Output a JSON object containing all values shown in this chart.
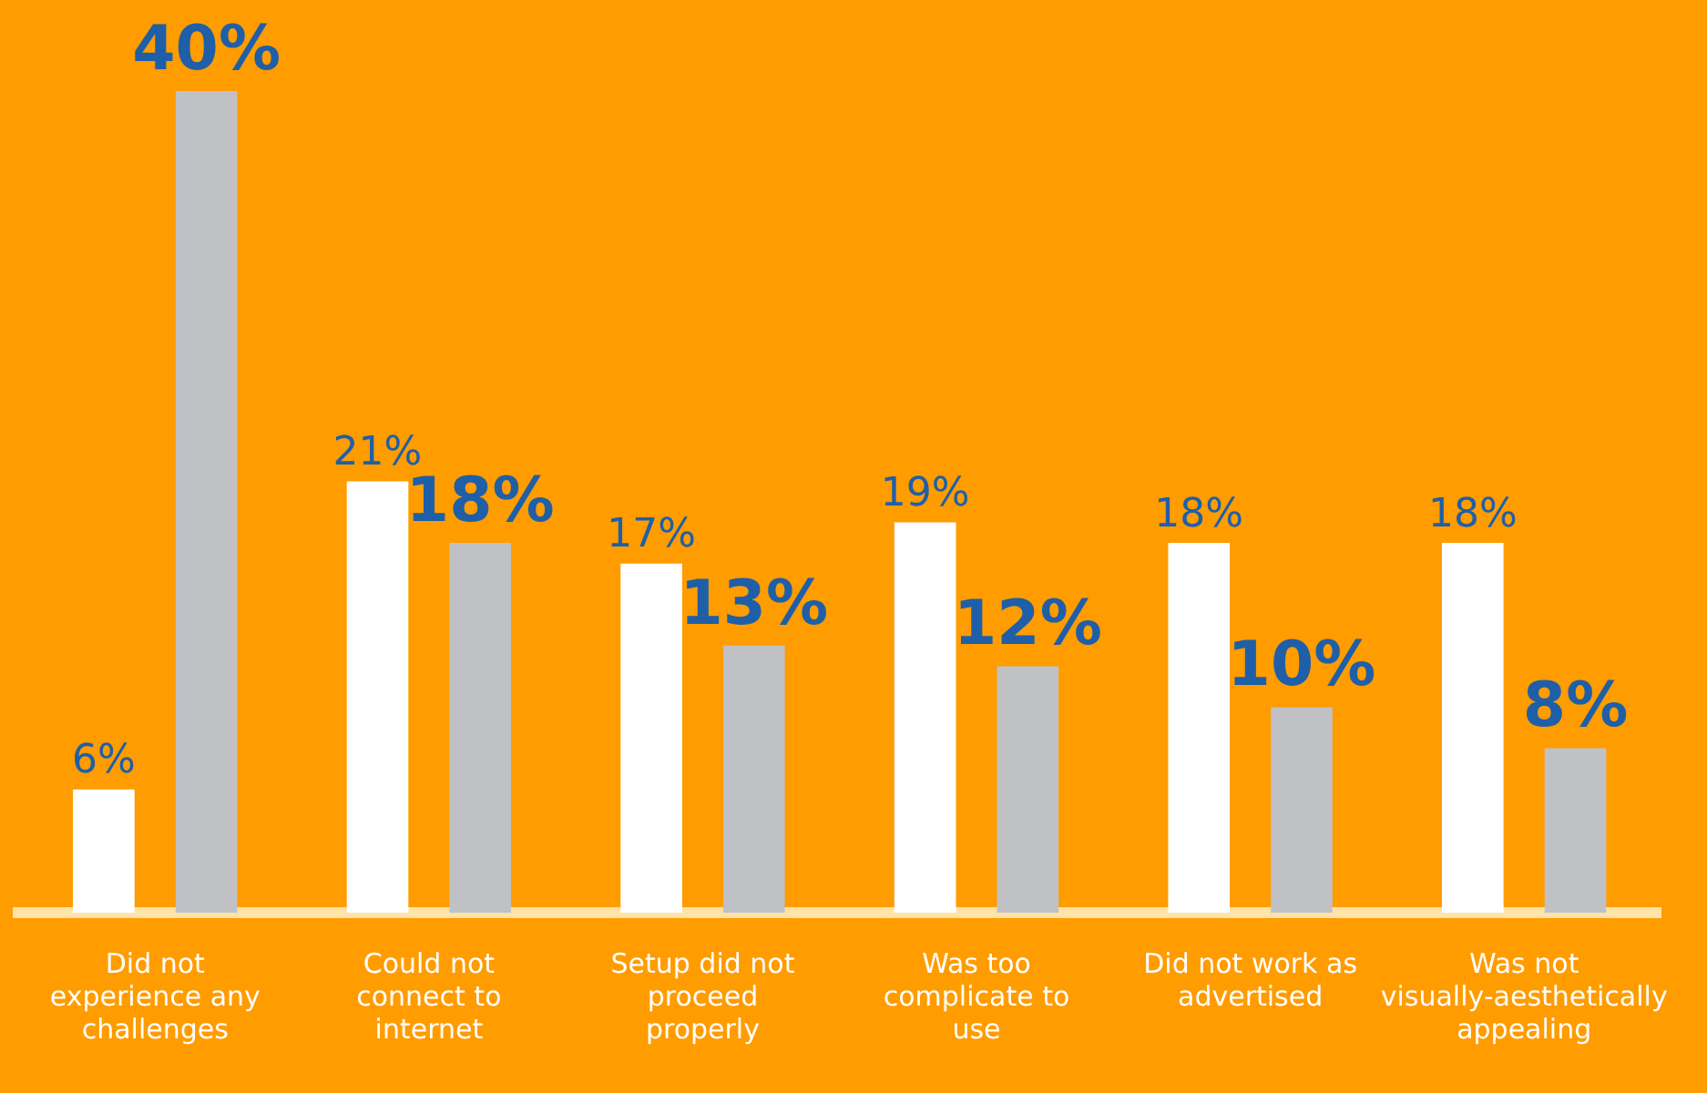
{
  "chart_data": {
    "type": "bar",
    "categories": [
      "Did not experience any challenges",
      "Could not connect to internet",
      "Setup did not proceed properly",
      "Was too complicate to use",
      "Did not work as advertised",
      "Was not visually-aesthetically appealing"
    ],
    "series": [
      {
        "color": "#ffffff",
        "values": [
          6,
          21,
          17,
          19,
          18,
          18
        ],
        "value_labels": [
          "6%",
          "21%",
          "17%",
          "19%",
          "18%",
          "18%"
        ]
      },
      {
        "color": "#bfc1c5",
        "values": [
          40,
          18,
          13,
          12,
          10,
          8
        ],
        "value_labels": [
          "40%",
          "18%",
          "13%",
          "12%",
          "10%",
          "8%"
        ]
      }
    ],
    "grid": false,
    "legend": false
  }
}
